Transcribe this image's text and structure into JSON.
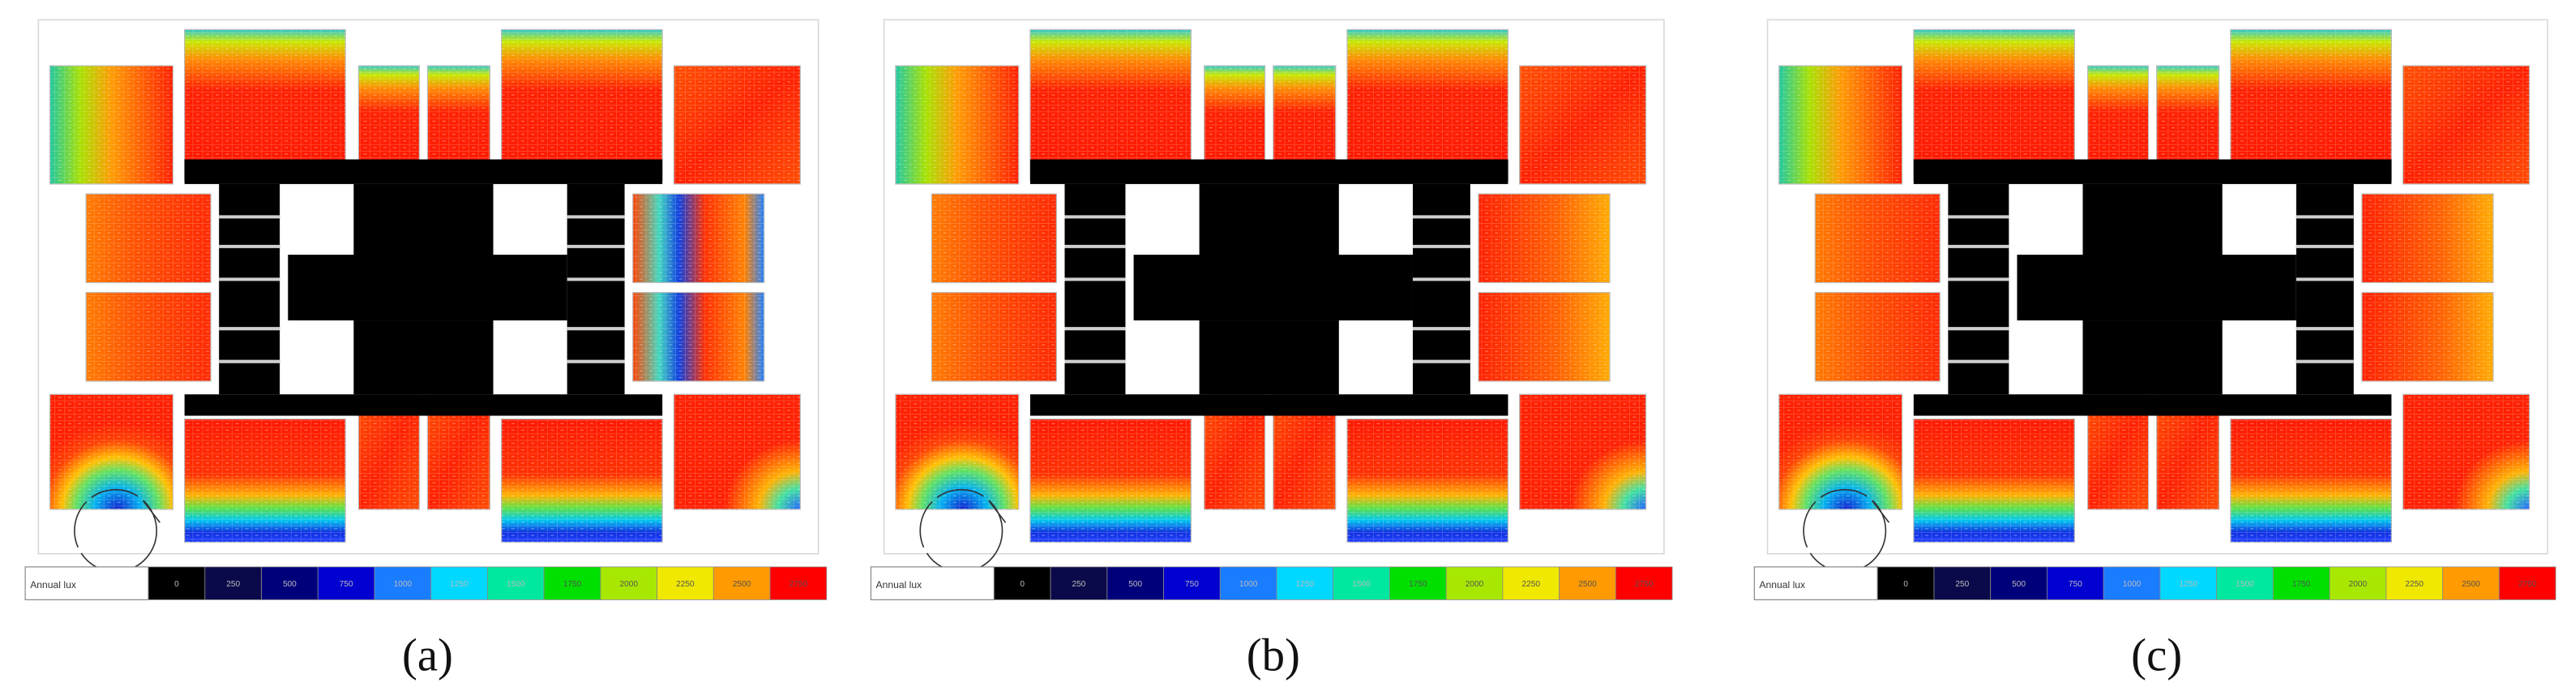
{
  "legend_colors": [
    "#000000",
    "#0a0a4a",
    "#00007a",
    "#0000d0",
    "#1a7cff",
    "#00d8ff",
    "#00e8a0",
    "#00e000",
    "#a8e800",
    "#f0e800",
    "#ff9a00",
    "#ff0000"
  ],
  "panels": [
    {
      "label": "(a)",
      "legend": {
        "title": "Annual lux",
        "ticks": [
          "0",
          "250",
          "500",
          "750",
          "1000",
          "1250",
          "1500",
          "1750",
          "2000",
          "2250",
          "2500",
          "2750"
        ]
      }
    },
    {
      "label": "(b)",
      "legend": {
        "title": "Annual lux",
        "ticks": [
          "0",
          "250",
          "500",
          "750",
          "1000",
          "1250",
          "1500",
          "1750",
          "2000",
          "2250",
          "2500",
          "2750"
        ]
      }
    },
    {
      "label": "(c)",
      "legend": {
        "title": "Annual lux",
        "ticks": [
          "0",
          "250",
          "500",
          "750",
          "1000",
          "1250",
          "1500",
          "1750",
          "2000",
          "2250",
          "2500",
          "2750"
        ]
      }
    }
  ]
}
